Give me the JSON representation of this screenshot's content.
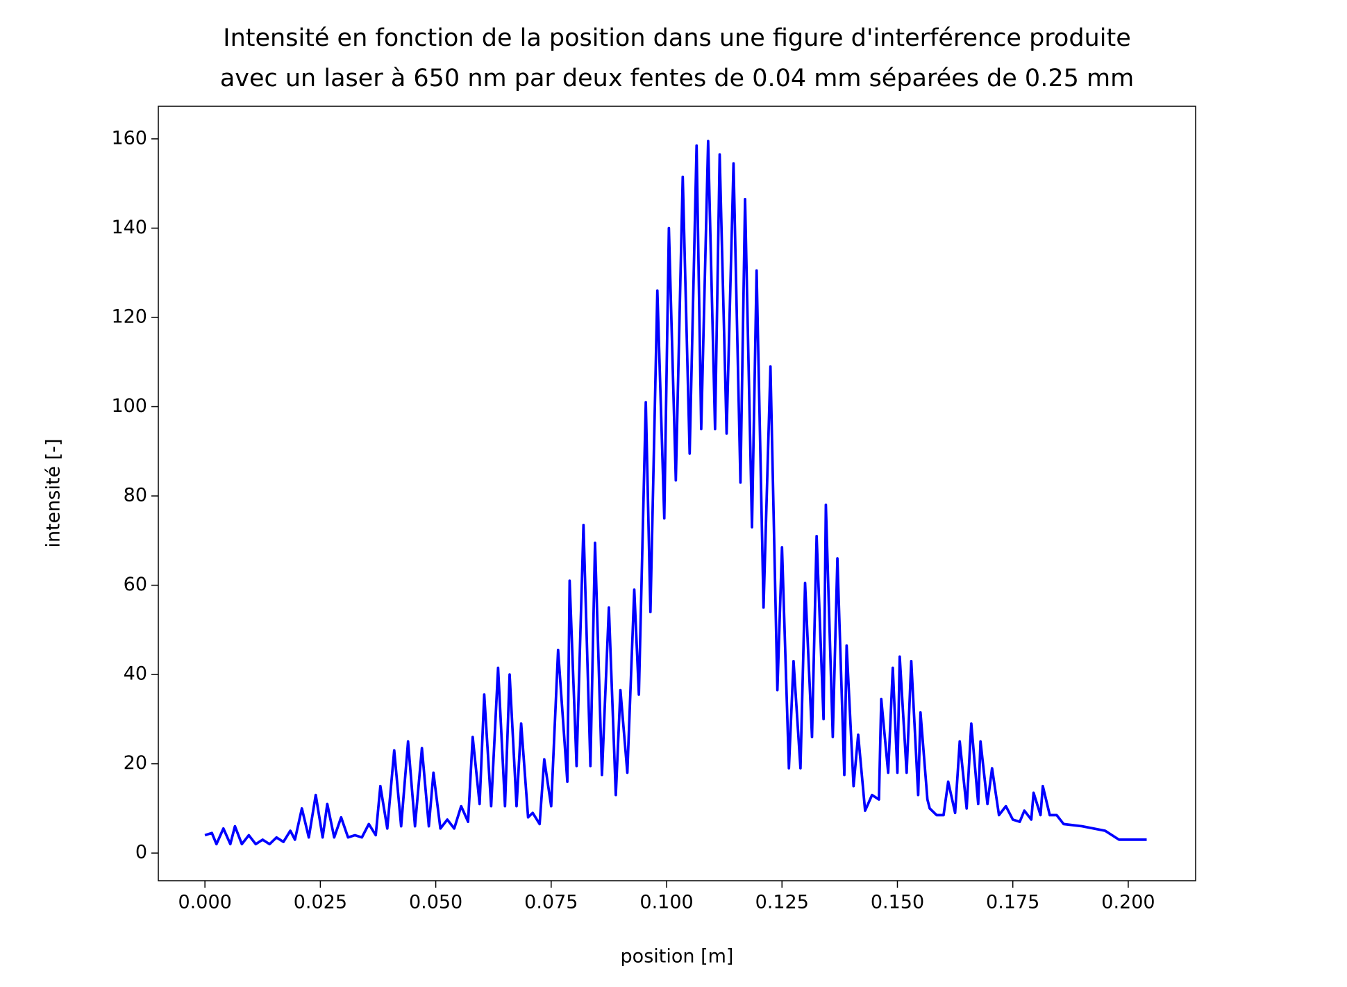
{
  "chart_data": {
    "type": "line",
    "title": [
      "Intensité en fonction de la position dans une figure d'interférence produite",
      "avec un laser à 650 nm par deux fentes de 0.04 mm séparées de 0.25 mm"
    ],
    "x_label": "position [m]",
    "y_label": "intensité [-]",
    "xlim": [
      -0.0101,
      0.2146
    ],
    "ylim": [
      -6.2,
      167.3
    ],
    "xticks": [
      {
        "value": 0,
        "label": "0.000"
      },
      {
        "value": 0.025,
        "label": "0.025"
      },
      {
        "value": 0.05,
        "label": "0.050"
      },
      {
        "value": 0.075,
        "label": "0.075"
      },
      {
        "value": 0.1,
        "label": "0.100"
      },
      {
        "value": 0.125,
        "label": "0.125"
      },
      {
        "value": 0.15,
        "label": "0.150"
      },
      {
        "value": 0.175,
        "label": "0.175"
      },
      {
        "value": 0.2,
        "label": "0.200"
      }
    ],
    "yticks": [
      0,
      20,
      40,
      60,
      80,
      100,
      120,
      140,
      160
    ],
    "grid": false,
    "series": [
      {
        "color": "#0000ff",
        "x": [
          0.0,
          0.0015,
          0.0025,
          0.004,
          0.0055,
          0.0065,
          0.008,
          0.0095,
          0.011,
          0.0125,
          0.014,
          0.0155,
          0.017,
          0.0185,
          0.0195,
          0.021,
          0.0225,
          0.024,
          0.0255,
          0.0265,
          0.028,
          0.0295,
          0.031,
          0.0325,
          0.034,
          0.0355,
          0.037,
          0.038,
          0.0395,
          0.041,
          0.0425,
          0.044,
          0.0455,
          0.047,
          0.0485,
          0.0495,
          0.051,
          0.0525,
          0.054,
          0.0555,
          0.057,
          0.058,
          0.0595,
          0.0605,
          0.062,
          0.0635,
          0.065,
          0.066,
          0.0675,
          0.0685,
          0.07,
          0.071,
          0.0725,
          0.0735,
          0.075,
          0.0765,
          0.0785,
          0.079,
          0.0805,
          0.082,
          0.0835,
          0.0845,
          0.086,
          0.0875,
          0.089,
          0.09,
          0.0915,
          0.093,
          0.094,
          0.0955,
          0.0965,
          0.098,
          0.0995,
          0.1005,
          0.102,
          0.1035,
          0.105,
          0.1065,
          0.1075,
          0.109,
          0.1105,
          0.1115,
          0.113,
          0.1145,
          0.116,
          0.117,
          0.1185,
          0.1195,
          0.121,
          0.1225,
          0.124,
          0.125,
          0.1265,
          0.1275,
          0.129,
          0.13,
          0.1315,
          0.1325,
          0.134,
          0.1345,
          0.136,
          0.137,
          0.1385,
          0.139,
          0.1405,
          0.1415,
          0.143,
          0.1445,
          0.146,
          0.1465,
          0.148,
          0.149,
          0.15,
          0.1505,
          0.152,
          0.153,
          0.1545,
          0.155,
          0.1565,
          0.157,
          0.1585,
          0.16,
          0.161,
          0.1625,
          0.1635,
          0.165,
          0.166,
          0.1675,
          0.168,
          0.1695,
          0.1705,
          0.172,
          0.1735,
          0.175,
          0.1765,
          0.1775,
          0.179,
          0.1795,
          0.181,
          0.1815,
          0.183,
          0.1845,
          0.186,
          0.19,
          0.195,
          0.198,
          0.204
        ],
        "values": [
          4,
          4.5,
          2,
          5.5,
          2,
          6,
          2,
          4,
          2,
          3,
          2,
          3.5,
          2.5,
          5,
          3,
          10,
          3.5,
          13,
          3.5,
          11,
          3.5,
          8,
          3.5,
          4,
          3.5,
          6.5,
          4,
          15,
          5.5,
          23,
          6,
          25,
          6,
          23.5,
          6,
          18,
          5.5,
          7.5,
          5.5,
          10.5,
          7,
          26,
          11,
          35.5,
          10.5,
          41.5,
          10.5,
          40,
          10.5,
          29,
          8,
          9,
          6.5,
          21,
          10.5,
          45.5,
          16,
          61,
          19.5,
          73.5,
          19.5,
          69.5,
          17.5,
          55,
          13,
          36.5,
          18,
          59,
          35.5,
          101,
          54,
          126,
          75,
          140,
          83.5,
          151.5,
          89.5,
          158.5,
          95,
          159.5,
          95,
          156.5,
          94,
          154.5,
          83,
          146.5,
          73,
          130.5,
          55,
          109,
          36.5,
          68.5,
          19,
          43,
          19,
          60.5,
          26,
          71,
          30,
          78,
          26,
          66,
          17.5,
          46.5,
          15,
          26.5,
          9.5,
          13,
          12,
          34.5,
          18,
          41.5,
          18,
          44,
          18,
          43,
          13,
          31.5,
          12,
          10,
          8.5,
          8.5,
          16,
          9,
          25,
          10,
          29,
          11,
          25,
          11,
          19,
          8.5,
          10.5,
          7.5,
          7,
          9.5,
          7.5,
          13.5,
          8.5,
          15,
          8.5,
          8.5,
          6.5,
          6,
          5,
          3,
          3
        ]
      }
    ]
  }
}
